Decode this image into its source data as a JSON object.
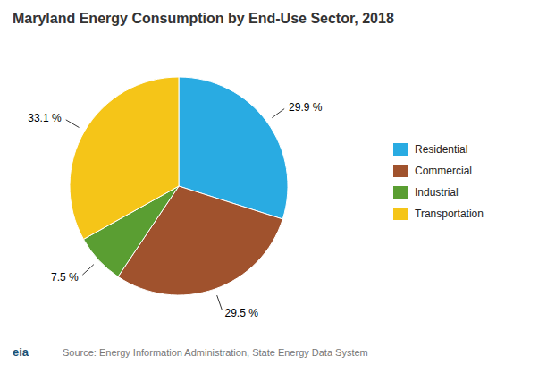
{
  "chart_data": {
    "type": "pie",
    "title": "Maryland Energy Consumption by End-Use Sector, 2018",
    "categories": [
      "Residential",
      "Commercial",
      "Industrial",
      "Transportation"
    ],
    "values": [
      29.9,
      29.5,
      7.5,
      33.1
    ],
    "value_labels": [
      "29.9 %",
      "29.5 %",
      "7.5 %",
      "33.1 %"
    ],
    "colors": [
      "#29ABE2",
      "#A0522D",
      "#5A9E32",
      "#F5C518"
    ],
    "data_labels": true,
    "legend": "right",
    "annotations": [
      "Source: Energy Information Administration, State Energy Data System",
      "eia"
    ]
  }
}
